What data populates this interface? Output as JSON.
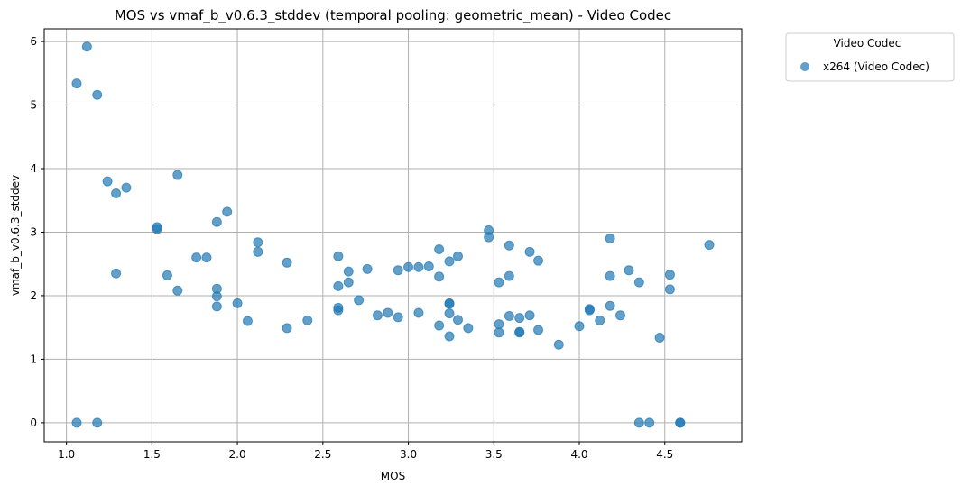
{
  "chart_data": {
    "type": "scatter",
    "title": "MOS vs vmaf_b_v0.6.3_stddev (temporal pooling: geometric_mean) - Video Codec",
    "xlabel": "MOS",
    "ylabel": "vmaf_b_v0.6.3_stddev",
    "xlim": [
      0.87,
      4.95
    ],
    "ylim": [
      -0.3,
      6.2
    ],
    "xticks": [
      1.0,
      1.5,
      2.0,
      2.5,
      3.0,
      3.5,
      4.0,
      4.5
    ],
    "xtick_labels": [
      "1.0",
      "1.5",
      "2.0",
      "2.5",
      "3.0",
      "3.5",
      "4.0",
      "4.5"
    ],
    "yticks": [
      0,
      1,
      2,
      3,
      4,
      5,
      6
    ],
    "ytick_labels": [
      "0",
      "1",
      "2",
      "3",
      "4",
      "5",
      "6"
    ],
    "grid": true,
    "legend": {
      "title": "Video Codec",
      "placement": "outside-top-right"
    },
    "series": [
      {
        "name": "x264 (Video Codec)",
        "color": "#1f77b4",
        "points": [
          [
            1.06,
            5.34
          ],
          [
            1.12,
            5.92
          ],
          [
            1.18,
            5.16
          ],
          [
            1.06,
            0.0
          ],
          [
            1.18,
            0.0
          ],
          [
            1.24,
            3.8
          ],
          [
            1.29,
            3.61
          ],
          [
            1.35,
            3.7
          ],
          [
            1.29,
            2.35
          ],
          [
            1.53,
            3.08
          ],
          [
            1.53,
            3.05
          ],
          [
            1.59,
            2.32
          ],
          [
            1.65,
            3.9
          ],
          [
            1.65,
            2.08
          ],
          [
            1.76,
            2.6
          ],
          [
            1.82,
            2.6
          ],
          [
            1.88,
            3.16
          ],
          [
            1.94,
            3.32
          ],
          [
            1.88,
            2.11
          ],
          [
            1.88,
            1.99
          ],
          [
            1.88,
            1.83
          ],
          [
            2.0,
            1.88
          ],
          [
            2.06,
            1.6
          ],
          [
            2.12,
            2.84
          ],
          [
            2.12,
            2.69
          ],
          [
            2.29,
            2.52
          ],
          [
            2.29,
            1.49
          ],
          [
            2.41,
            1.61
          ],
          [
            2.59,
            2.62
          ],
          [
            2.59,
            2.15
          ],
          [
            2.59,
            1.81
          ],
          [
            2.59,
            1.77
          ],
          [
            2.65,
            2.38
          ],
          [
            2.65,
            2.21
          ],
          [
            2.71,
            1.93
          ],
          [
            2.76,
            2.42
          ],
          [
            2.82,
            1.69
          ],
          [
            2.88,
            1.73
          ],
          [
            2.94,
            2.4
          ],
          [
            2.94,
            1.66
          ],
          [
            3.0,
            2.45
          ],
          [
            3.06,
            2.45
          ],
          [
            3.06,
            1.73
          ],
          [
            3.12,
            2.46
          ],
          [
            3.18,
            2.73
          ],
          [
            3.18,
            2.3
          ],
          [
            3.18,
            1.53
          ],
          [
            3.24,
            2.54
          ],
          [
            3.24,
            1.88
          ],
          [
            3.24,
            1.87
          ],
          [
            3.24,
            1.72
          ],
          [
            3.24,
            1.36
          ],
          [
            3.29,
            2.62
          ],
          [
            3.29,
            1.62
          ],
          [
            3.35,
            1.49
          ],
          [
            3.47,
            3.03
          ],
          [
            3.47,
            2.92
          ],
          [
            3.53,
            2.21
          ],
          [
            3.53,
            1.55
          ],
          [
            3.53,
            1.42
          ],
          [
            3.59,
            2.79
          ],
          [
            3.59,
            2.31
          ],
          [
            3.59,
            1.68
          ],
          [
            3.65,
            1.65
          ],
          [
            3.65,
            1.43
          ],
          [
            3.65,
            1.42
          ],
          [
            3.71,
            2.69
          ],
          [
            3.71,
            1.69
          ],
          [
            3.76,
            2.55
          ],
          [
            3.76,
            1.46
          ],
          [
            3.88,
            1.23
          ],
          [
            4.0,
            1.52
          ],
          [
            4.06,
            1.79
          ],
          [
            4.06,
            1.77
          ],
          [
            4.12,
            1.61
          ],
          [
            4.18,
            2.9
          ],
          [
            4.18,
            2.31
          ],
          [
            4.18,
            1.84
          ],
          [
            4.24,
            1.69
          ],
          [
            4.29,
            2.4
          ],
          [
            4.35,
            2.21
          ],
          [
            4.35,
            0.0
          ],
          [
            4.41,
            0.0
          ],
          [
            4.47,
            1.34
          ],
          [
            4.53,
            2.33
          ],
          [
            4.53,
            2.1
          ],
          [
            4.59,
            0.0
          ],
          [
            4.59,
            0.0
          ],
          [
            4.76,
            2.8
          ]
        ]
      }
    ]
  }
}
